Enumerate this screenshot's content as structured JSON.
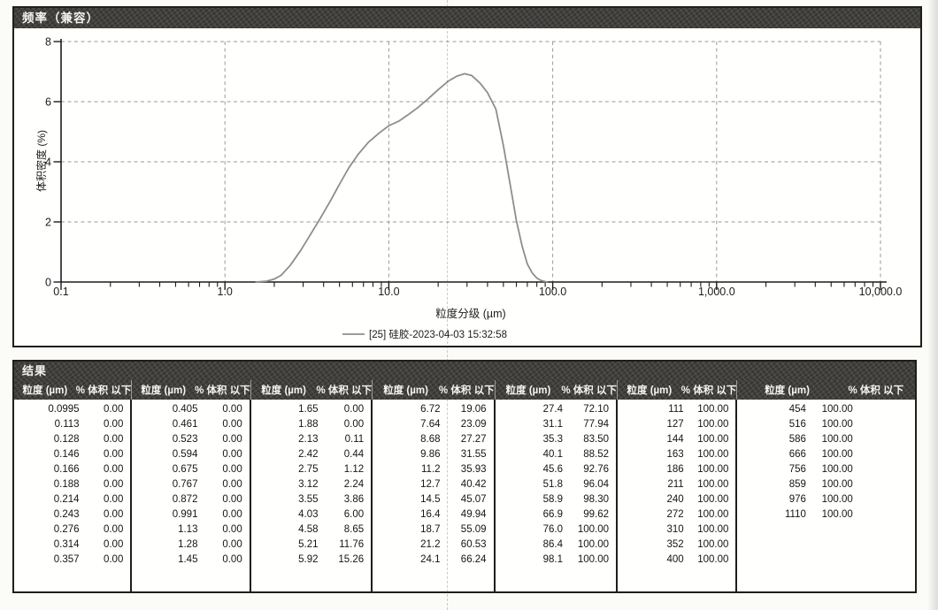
{
  "chart": {
    "title": "频率（兼容）",
    "y_axis_title": "体积密度 (%)",
    "x_axis_title": "粒度分级 (µm)",
    "legend_label": "[25] 硅胶-2023-04-03 15:32:58",
    "x_tick_labels": [
      "0.1",
      "1.0",
      "10.0",
      "100.0",
      "1,000.0",
      "10,000.0"
    ],
    "y_tick_labels": [
      "0",
      "2",
      "4",
      "6",
      "8"
    ],
    "curve_color": "#8e8e8e",
    "grid_color": "#9a9a9a"
  },
  "results": {
    "title": "结果",
    "size_header": "粒度 (µm)",
    "pct_header": "% 体积 以下",
    "groups": [
      [
        [
          "0.0995",
          "0.00"
        ],
        [
          "0.113",
          "0.00"
        ],
        [
          "0.128",
          "0.00"
        ],
        [
          "0.146",
          "0.00"
        ],
        [
          "0.166",
          "0.00"
        ],
        [
          "0.188",
          "0.00"
        ],
        [
          "0.214",
          "0.00"
        ],
        [
          "0.243",
          "0.00"
        ],
        [
          "0.276",
          "0.00"
        ],
        [
          "0.314",
          "0.00"
        ],
        [
          "0.357",
          "0.00"
        ]
      ],
      [
        [
          "0.405",
          "0.00"
        ],
        [
          "0.461",
          "0.00"
        ],
        [
          "0.523",
          "0.00"
        ],
        [
          "0.594",
          "0.00"
        ],
        [
          "0.675",
          "0.00"
        ],
        [
          "0.767",
          "0.00"
        ],
        [
          "0.872",
          "0.00"
        ],
        [
          "0.991",
          "0.00"
        ],
        [
          "1.13",
          "0.00"
        ],
        [
          "1.28",
          "0.00"
        ],
        [
          "1.45",
          "0.00"
        ]
      ],
      [
        [
          "1.65",
          "0.00"
        ],
        [
          "1.88",
          "0.00"
        ],
        [
          "2.13",
          "0.11"
        ],
        [
          "2.42",
          "0.44"
        ],
        [
          "2.75",
          "1.12"
        ],
        [
          "3.12",
          "2.24"
        ],
        [
          "3.55",
          "3.86"
        ],
        [
          "4.03",
          "6.00"
        ],
        [
          "4.58",
          "8.65"
        ],
        [
          "5.21",
          "11.76"
        ],
        [
          "5.92",
          "15.26"
        ]
      ],
      [
        [
          "6.72",
          "19.06"
        ],
        [
          "7.64",
          "23.09"
        ],
        [
          "8.68",
          "27.27"
        ],
        [
          "9.86",
          "31.55"
        ],
        [
          "11.2",
          "35.93"
        ],
        [
          "12.7",
          "40.42"
        ],
        [
          "14.5",
          "45.07"
        ],
        [
          "16.4",
          "49.94"
        ],
        [
          "18.7",
          "55.09"
        ],
        [
          "21.2",
          "60.53"
        ],
        [
          "24.1",
          "66.24"
        ]
      ],
      [
        [
          "27.4",
          "72.10"
        ],
        [
          "31.1",
          "77.94"
        ],
        [
          "35.3",
          "83.50"
        ],
        [
          "40.1",
          "88.52"
        ],
        [
          "45.6",
          "92.76"
        ],
        [
          "51.8",
          "96.04"
        ],
        [
          "58.9",
          "98.30"
        ],
        [
          "66.9",
          "99.62"
        ],
        [
          "76.0",
          "100.00"
        ],
        [
          "86.4",
          "100.00"
        ],
        [
          "98.1",
          "100.00"
        ]
      ],
      [
        [
          "111",
          "100.00"
        ],
        [
          "127",
          "100.00"
        ],
        [
          "144",
          "100.00"
        ],
        [
          "163",
          "100.00"
        ],
        [
          "186",
          "100.00"
        ],
        [
          "211",
          "100.00"
        ],
        [
          "240",
          "100.00"
        ],
        [
          "272",
          "100.00"
        ],
        [
          "310",
          "100.00"
        ],
        [
          "352",
          "100.00"
        ],
        [
          "400",
          "100.00"
        ]
      ],
      [
        [
          "454",
          "100.00"
        ],
        [
          "516",
          "100.00"
        ],
        [
          "586",
          "100.00"
        ],
        [
          "666",
          "100.00"
        ],
        [
          "756",
          "100.00"
        ],
        [
          "859",
          "100.00"
        ],
        [
          "976",
          "100.00"
        ],
        [
          "1110",
          "100.00"
        ]
      ]
    ]
  },
  "chart_data": {
    "type": "line",
    "title": "频率（兼容）",
    "xlabel": "粒度分级 (µm)",
    "ylabel": "体积密度 (%)",
    "x_scale": "log",
    "xlim": [
      0.1,
      10000
    ],
    "ylim": [
      0,
      8
    ],
    "x_ticks": [
      0.1,
      1,
      10,
      100,
      1000,
      10000
    ],
    "y_ticks": [
      0,
      2,
      4,
      6,
      8
    ],
    "grid": true,
    "legend_position": "bottom",
    "series": [
      {
        "name": "[25] 硅胶-2023-04-03 15:32:58",
        "color": "#8e8e8e",
        "points": [
          [
            1.55,
            0
          ],
          [
            1.8,
            0.03
          ],
          [
            2.0,
            0.1
          ],
          [
            2.2,
            0.22
          ],
          [
            2.5,
            0.55
          ],
          [
            2.9,
            1.05
          ],
          [
            3.3,
            1.55
          ],
          [
            3.8,
            2.1
          ],
          [
            4.4,
            2.7
          ],
          [
            5.0,
            3.25
          ],
          [
            5.7,
            3.8
          ],
          [
            6.5,
            4.25
          ],
          [
            7.5,
            4.65
          ],
          [
            8.7,
            4.95
          ],
          [
            10,
            5.2
          ],
          [
            11.5,
            5.35
          ],
          [
            13,
            5.55
          ],
          [
            15,
            5.8
          ],
          [
            17,
            6.05
          ],
          [
            20,
            6.4
          ],
          [
            23,
            6.68
          ],
          [
            26,
            6.85
          ],
          [
            29,
            6.93
          ],
          [
            32,
            6.87
          ],
          [
            36,
            6.62
          ],
          [
            40,
            6.3
          ],
          [
            45,
            5.75
          ],
          [
            50,
            4.55
          ],
          [
            55,
            3.25
          ],
          [
            60,
            2.05
          ],
          [
            65,
            1.2
          ],
          [
            70,
            0.6
          ],
          [
            75,
            0.3
          ],
          [
            80,
            0.13
          ],
          [
            85,
            0.05
          ],
          [
            92,
            0
          ]
        ]
      }
    ]
  }
}
